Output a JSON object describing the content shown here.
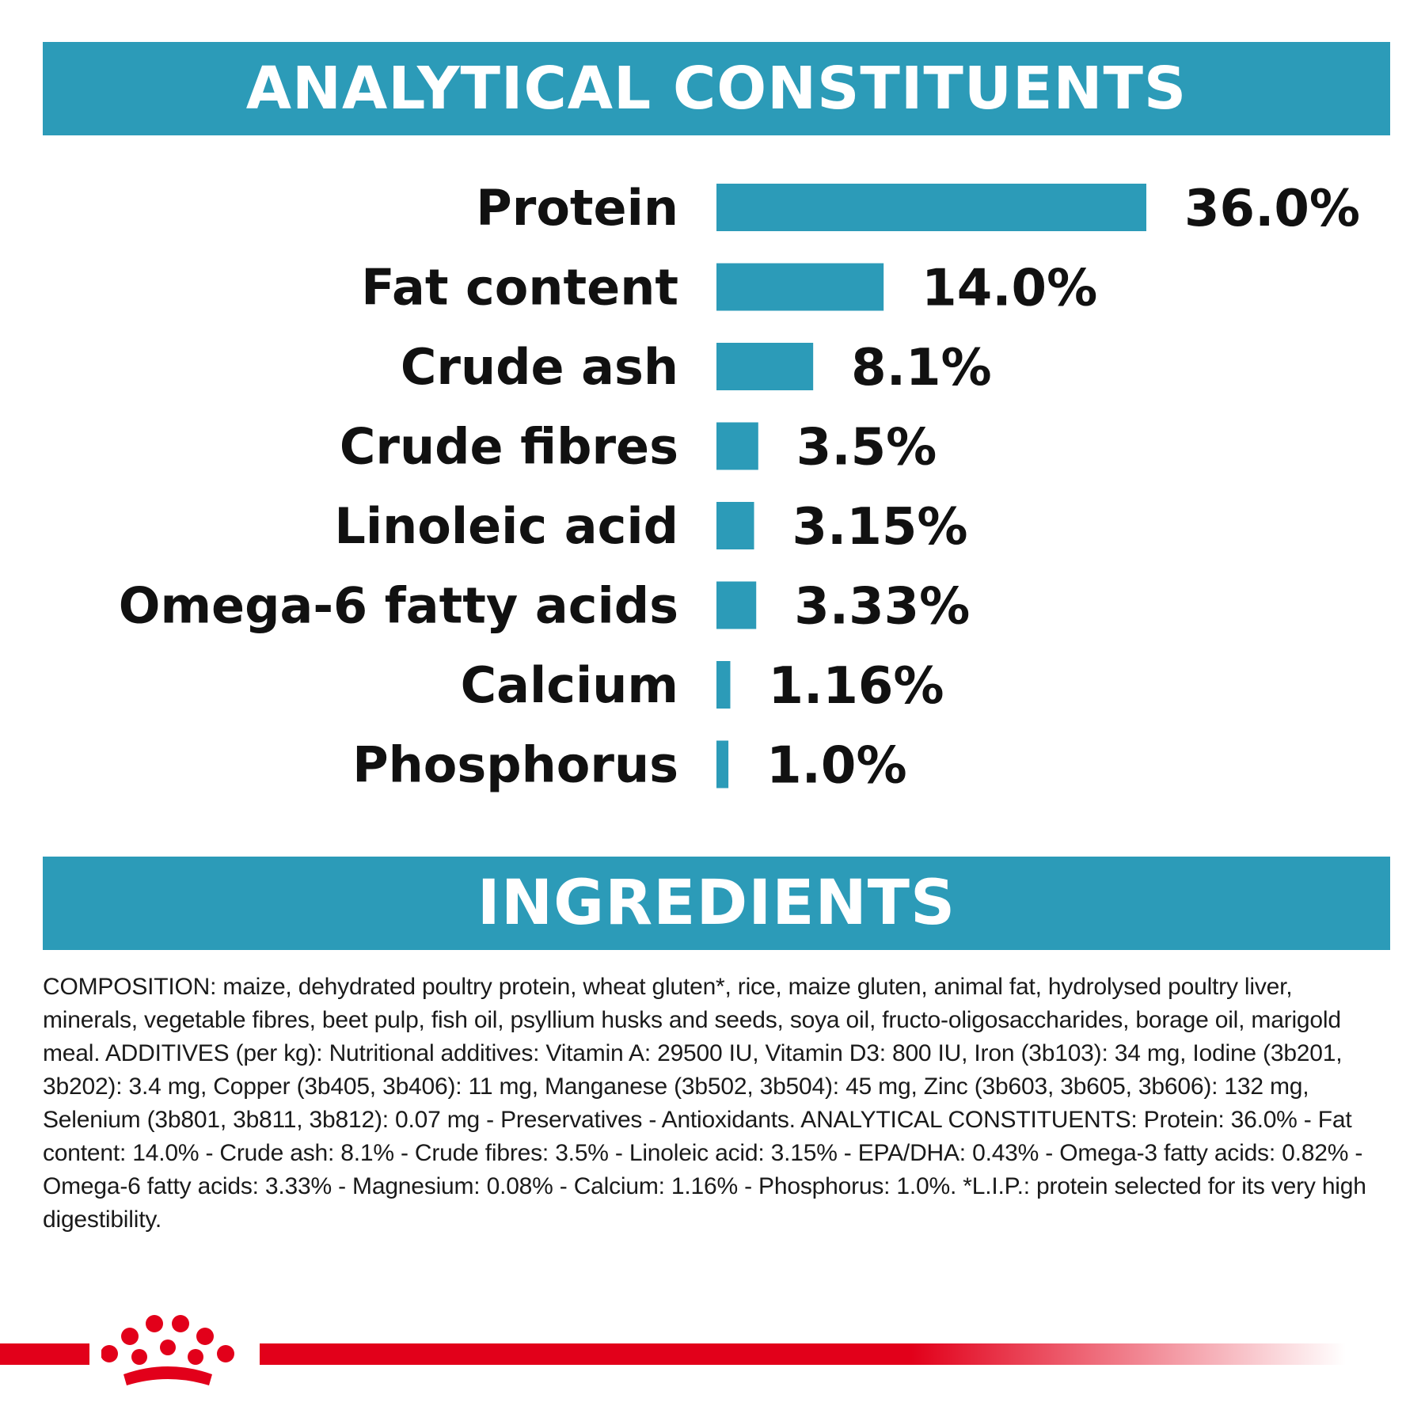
{
  "sections": {
    "analytical_title": "ANALYTICAL CONSTITUENTS",
    "ingredients_title": "INGREDIENTS"
  },
  "colors": {
    "banner": "#2c9bb8",
    "bar": "#2c9bb8",
    "brand_red": "#e2001a"
  },
  "chart_data": {
    "type": "bar",
    "orientation": "horizontal",
    "categories": [
      "Protein",
      "Fat content",
      "Crude ash",
      "Crude fibres",
      "Linoleic acid",
      "Omega-6 fatty acids",
      "Calcium",
      "Phosphorus"
    ],
    "values": [
      36.0,
      14.0,
      8.1,
      3.5,
      3.15,
      3.33,
      1.16,
      1.0
    ],
    "value_labels": [
      "36.0%",
      "14.0%",
      "8.1%",
      "3.5%",
      "3.15%",
      "3.33%",
      "1.16%",
      "1.0%"
    ],
    "title": "ANALYTICAL CONSTITUENTS",
    "unit": "%",
    "xlim": [
      0,
      36
    ],
    "grid": false,
    "legend": "none"
  },
  "ingredients": {
    "text": "COMPOSITION: maize, dehydrated poultry protein, wheat gluten*, rice, maize gluten, animal fat, hydrolysed poultry liver, minerals, vegetable fibres, beet pulp, fish oil, psyllium husks and seeds, soya oil, fructo-oligosaccharides, borage oil, marigold meal. ADDITIVES (per kg): Nutritional additives: Vitamin A: 29500 IU, Vitamin D3: 800 IU, Iron (3b103): 34 mg, Iodine (3b201, 3b202): 3.4 mg, Copper (3b405, 3b406): 11 mg, Manganese (3b502, 3b504): 45 mg, Zinc (3b603, 3b605, 3b606): 132 mg, Selenium (3b801, 3b811, 3b812): 0.07 mg - Preservatives - Antioxidants. ANALYTICAL CONSTITUENTS: Protein: 36.0% - Fat content: 14.0% - Crude ash: 8.1% - Crude fibres: 3.5% - Linoleic acid: 3.15% - EPA/DHA: 0.43% - Omega-3 fatty acids: 0.82% - Omega-6 fatty acids: 3.33% - Magnesium: 0.08% - Calcium: 1.16% - Phosphorus: 1.0%. *L.I.P.: protein selected for its very high digestibility."
  },
  "footer": {
    "logo_icon": "crown-icon"
  }
}
